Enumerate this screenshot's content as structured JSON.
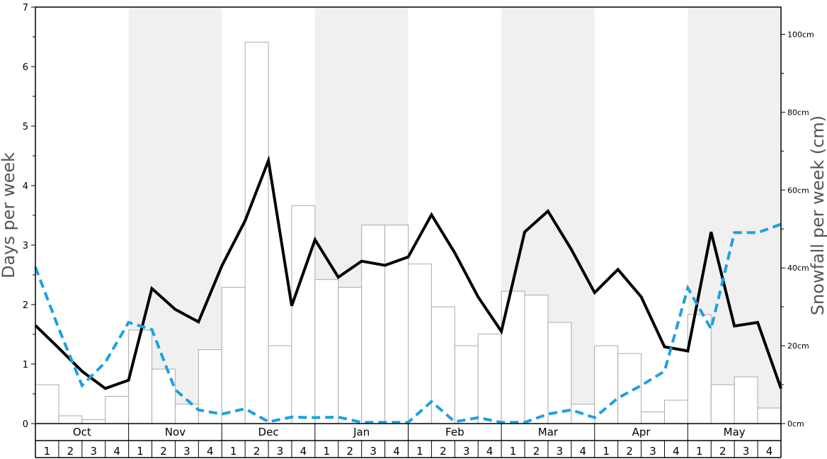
{
  "chart_data": {
    "type": "bar",
    "ylabel": "Days per week",
    "y2label": "Snowfall per week (cm)",
    "ylim": [
      0,
      7
    ],
    "y2lim": [
      0,
      107
    ],
    "yticks": [
      "0",
      "1",
      "2",
      "3",
      "4",
      "5",
      "6",
      "7"
    ],
    "y2ticks": [
      {
        "value": 0,
        "label": "0cm"
      },
      {
        "value": 20,
        "label": "20cm"
      },
      {
        "value": 40,
        "label": "40cm"
      },
      {
        "value": 60,
        "label": "60cm"
      },
      {
        "value": 80,
        "label": "80cm"
      },
      {
        "value": 100,
        "label": "100cm"
      }
    ],
    "months": [
      "Oct",
      "Nov",
      "Dec",
      "Jan",
      "Feb",
      "Mar",
      "Apr",
      "May"
    ],
    "weeks": [
      "1",
      "2",
      "3",
      "4"
    ],
    "shaded_months": [
      false,
      true,
      false,
      true,
      false,
      true,
      false,
      true
    ],
    "colors": {
      "shade": "#f0f0f0",
      "bar_stroke": "#aaaaaa",
      "line": "#000000",
      "dashed": "#1ba1e2"
    },
    "series": [
      {
        "type": "bar",
        "axis": "right",
        "values": [
          10,
          2,
          1,
          7,
          24,
          14,
          5,
          19,
          35,
          98,
          20,
          56,
          37,
          35,
          51,
          51,
          41,
          30,
          20,
          23,
          34,
          33,
          26,
          5,
          20,
          18,
          3,
          6,
          28,
          10,
          12,
          4
        ]
      },
      {
        "type": "line",
        "axis": "left",
        "values": [
          1.65,
          1.27,
          0.88,
          0.59,
          0.73,
          2.27,
          1.92,
          1.71,
          2.65,
          3.41,
          4.42,
          1.98,
          3.09,
          2.46,
          2.73,
          2.66,
          2.8,
          3.51,
          2.87,
          2.13,
          1.55,
          3.22,
          3.57,
          2.93,
          2.2,
          2.59,
          2.13,
          1.29,
          1.22,
          3.22,
          1.64,
          1.7,
          0.59
        ]
      },
      {
        "type": "line",
        "style": "dashed",
        "axis": "left",
        "values": [
          2.63,
          1.6,
          0.64,
          1.03,
          1.7,
          1.58,
          0.57,
          0.23,
          0.16,
          0.25,
          0.03,
          0.11,
          0.1,
          0.11,
          0.02,
          0.02,
          0.02,
          0.37,
          0.03,
          0.1,
          0.02,
          0.02,
          0.16,
          0.23,
          0.1,
          0.43,
          0.64,
          0.88,
          2.28,
          1.59,
          3.21,
          3.21,
          3.35
        ]
      }
    ]
  }
}
